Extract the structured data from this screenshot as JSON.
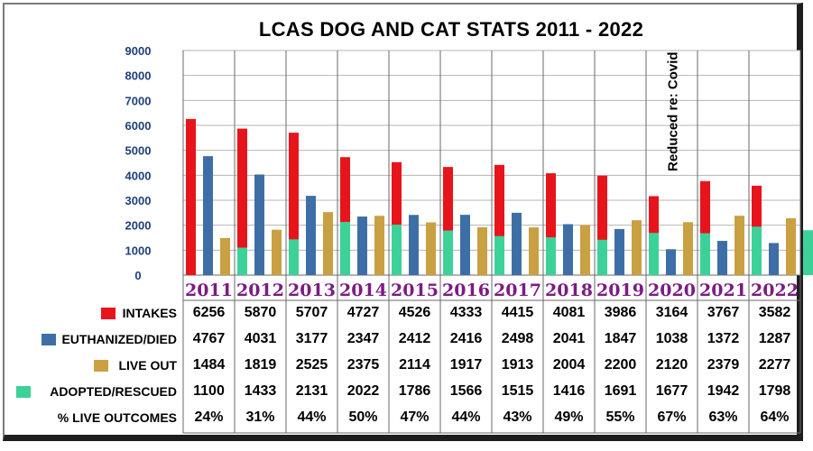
{
  "title": "LCAS DOG AND CAT STATS 2011 - 2022",
  "chart_data": {
    "type": "bar",
    "title": "LCAS DOG AND CAT STATS 2011 - 2022",
    "categories": [
      "2011",
      "2012",
      "2013",
      "2014",
      "2015",
      "2016",
      "2017",
      "2018",
      "2019",
      "2020",
      "2021",
      "2022"
    ],
    "ylim": [
      0,
      9000
    ],
    "yticks": [
      0,
      1000,
      2000,
      3000,
      4000,
      5000,
      6000,
      7000,
      8000,
      9000
    ],
    "grid": true,
    "series": [
      {
        "name": "INTAKES",
        "color": "#e8141c",
        "values": [
          6256,
          5870,
          5707,
          4727,
          4526,
          4333,
          4415,
          4081,
          3986,
          3164,
          3767,
          3582
        ]
      },
      {
        "name": "EUTHANIZED/DIED",
        "color": "#3d6fa6",
        "values": [
          4767,
          4031,
          3177,
          2347,
          2412,
          2416,
          2498,
          2041,
          1847,
          1038,
          1372,
          1287
        ]
      },
      {
        "name": "LIVE OUT",
        "color": "#c9a042",
        "values": [
          1484,
          1819,
          2525,
          2375,
          2114,
          1917,
          1913,
          2004,
          2200,
          2120,
          2379,
          2277
        ]
      },
      {
        "name": "ADOPTED/RESCUED",
        "color": "#3dd19a",
        "values": [
          1100,
          1433,
          2131,
          2022,
          1786,
          1566,
          1515,
          1416,
          1691,
          1677,
          1942,
          1798
        ]
      }
    ],
    "percent_row": {
      "name": "% LIVE OUTCOMES",
      "values": [
        "24%",
        "31%",
        "44%",
        "50%",
        "47%",
        "44%",
        "43%",
        "49%",
        "55%",
        "67%",
        "63%",
        "64%"
      ]
    },
    "annotation": {
      "text": "Reduced re: Covid",
      "category": "2020"
    }
  }
}
